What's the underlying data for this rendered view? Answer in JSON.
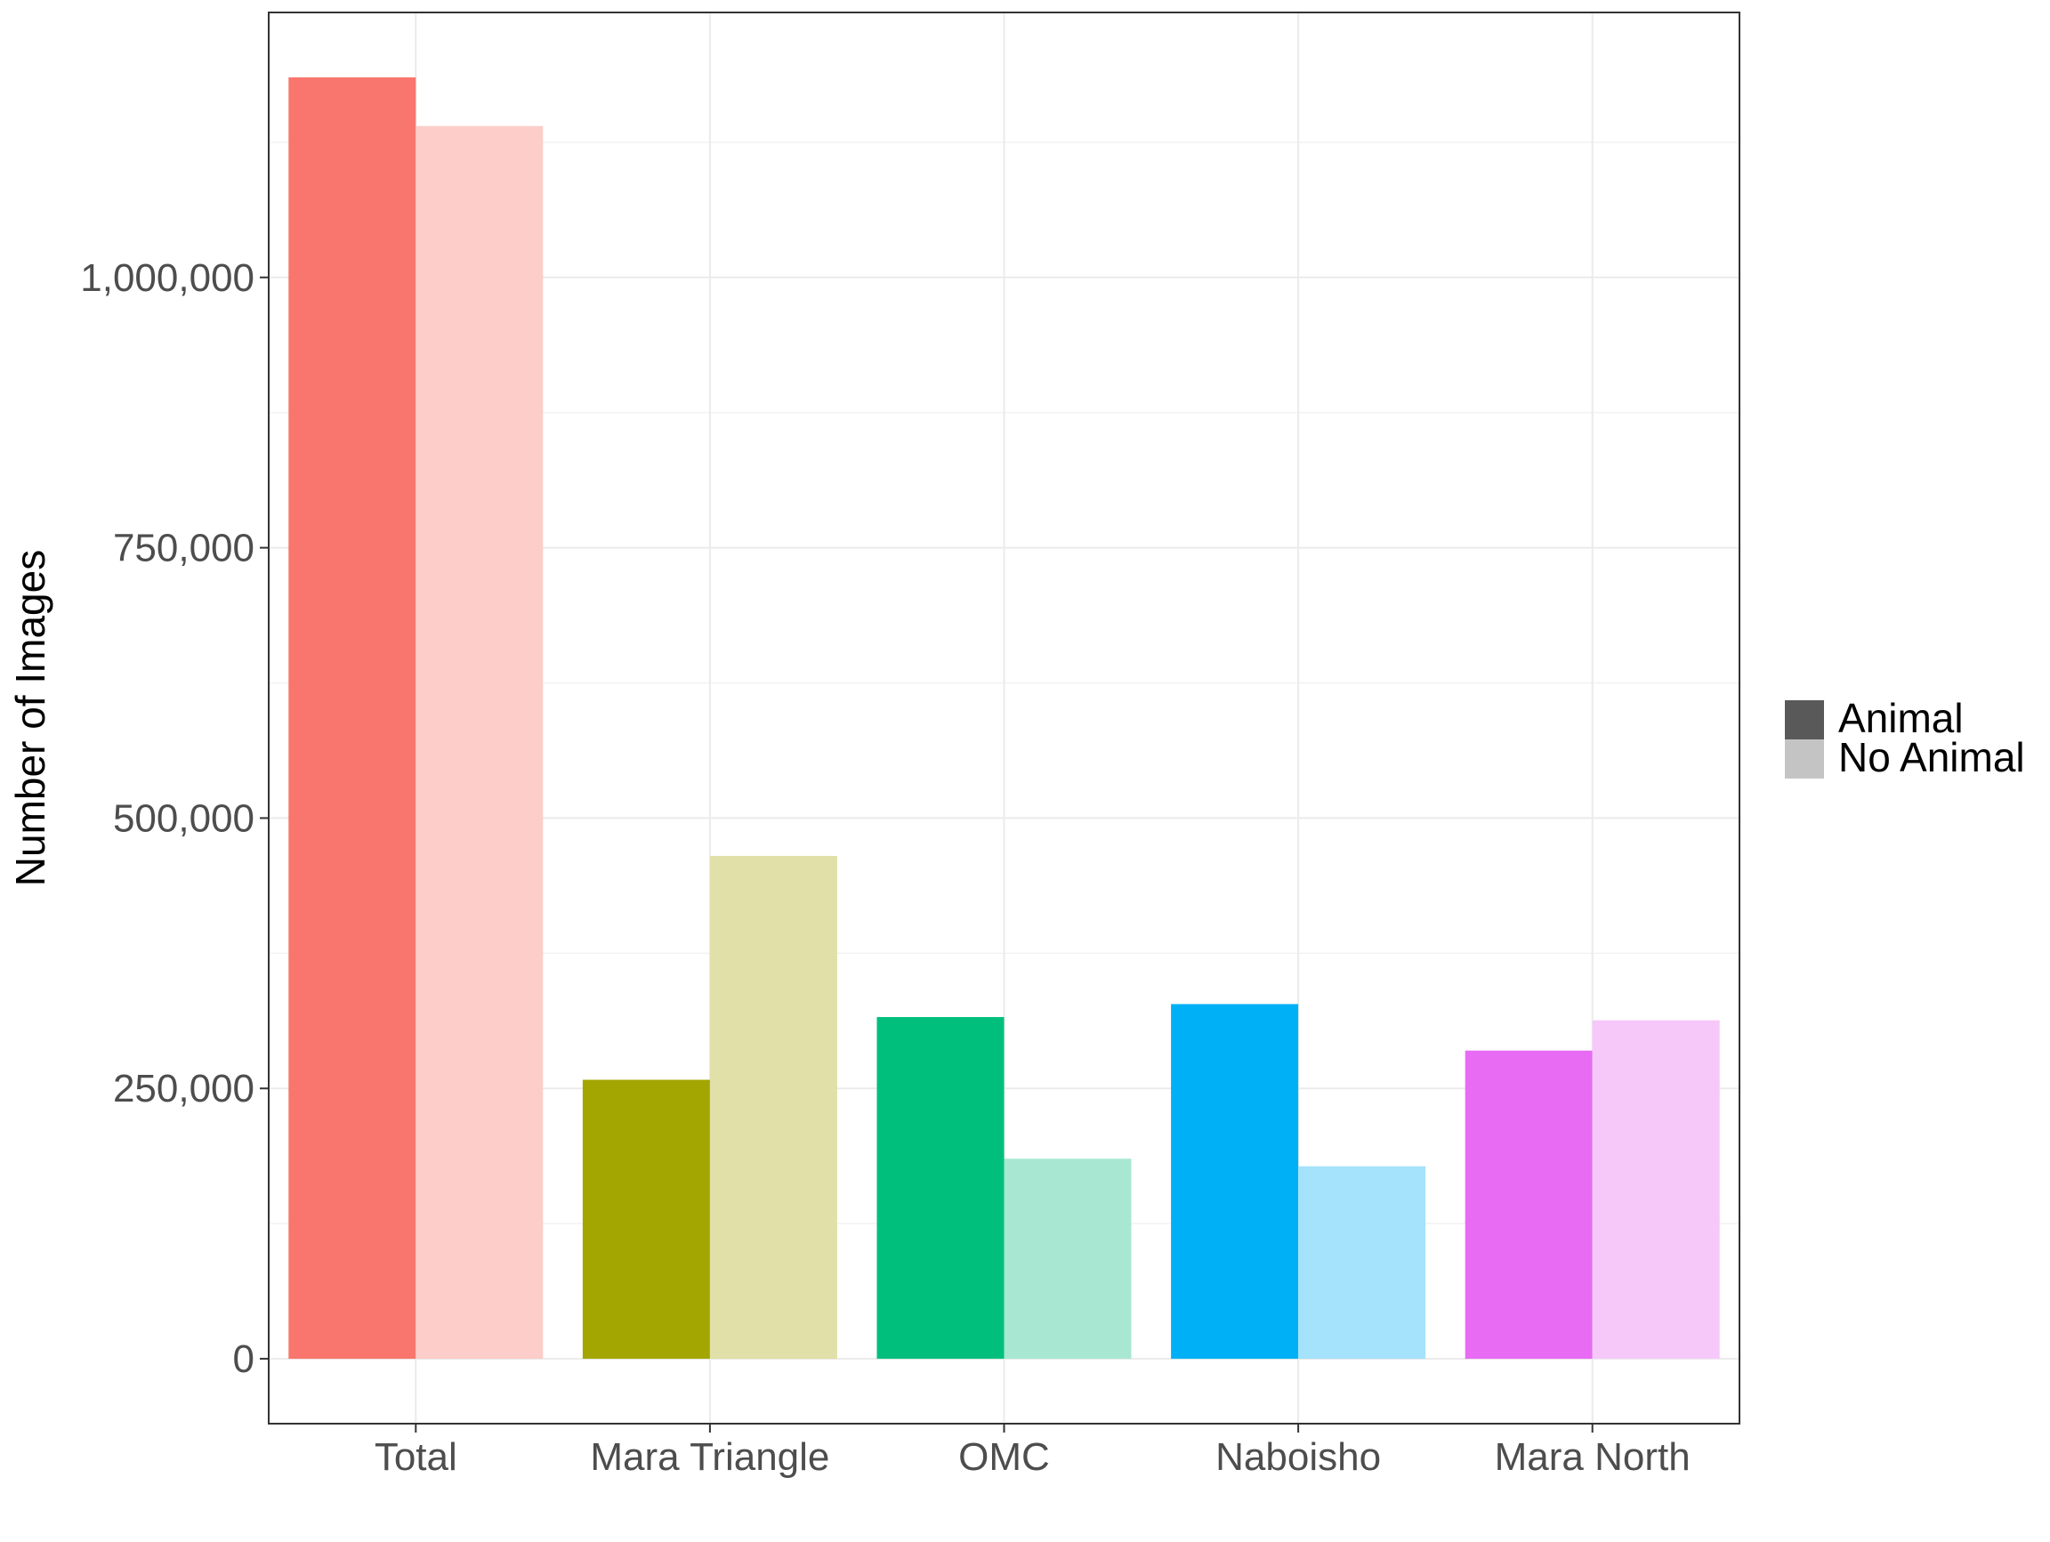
{
  "chart_data": {
    "type": "bar",
    "categories": [
      "Total",
      "Mara Triangle",
      "OMC",
      "Naboisho",
      "Mara North"
    ],
    "series": [
      {
        "name": "Animal",
        "values": [
          1185000,
          258000,
          316000,
          328000,
          285000
        ]
      },
      {
        "name": "No Animal",
        "values": [
          1140000,
          465000,
          185000,
          178000,
          313000
        ]
      }
    ],
    "category_colors": [
      "#F8766D",
      "#A3A500",
      "#00BF7D",
      "#00B0F6",
      "#E76BF3"
    ],
    "category_colors_light": [
      "#FCCDC9",
      "#E0E0A8",
      "#A8E8D2",
      "#A5E2FB",
      "#F6C8FA"
    ],
    "ylabel": "Number of Images",
    "xlabel": "",
    "ylim": [
      -60000,
      1245000
    ],
    "yticks": [
      0,
      250000,
      500000,
      750000,
      1000000
    ],
    "ytick_labels": [
      "0",
      "250,000",
      "500,000",
      "750,000",
      "1,000,000"
    ],
    "grid": true,
    "legend": {
      "position": "right",
      "entries": [
        {
          "label": "Animal",
          "color": "#595959"
        },
        {
          "label": "No Animal",
          "color": "#C4C4C4"
        }
      ]
    }
  }
}
